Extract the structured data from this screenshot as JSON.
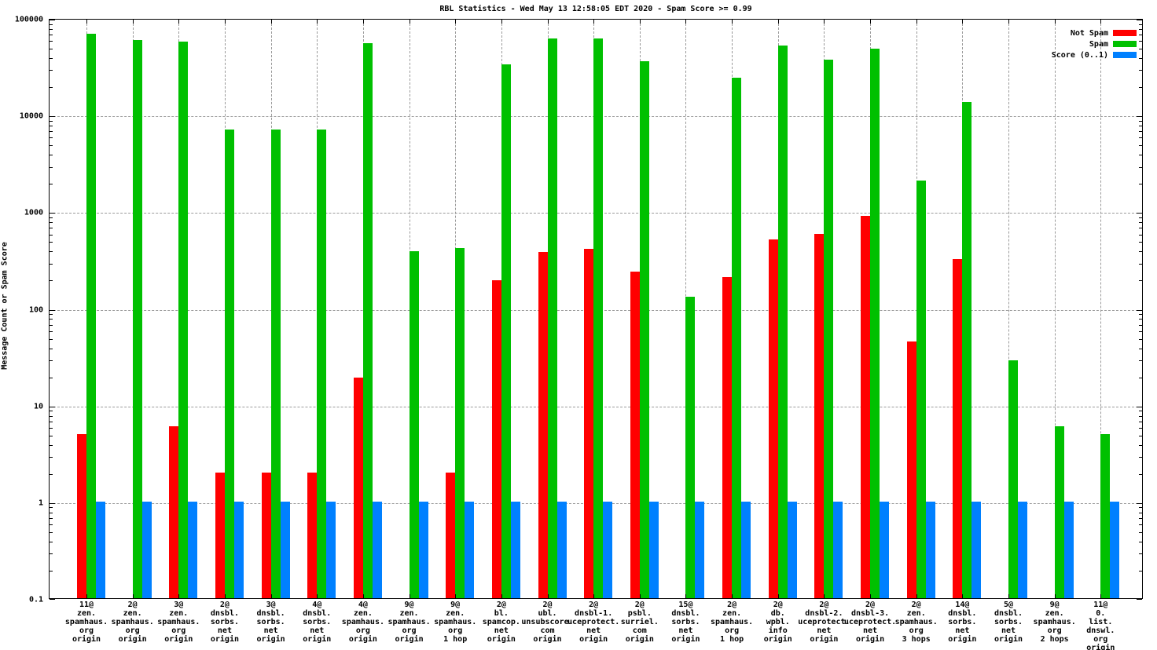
{
  "chart_data": {
    "type": "bar",
    "title": "RBL Statistics - Wed May 13 12:58:05 EDT 2020 - Spam Score >= 0.99",
    "ylabel": "Message Count or Spam Score",
    "xlabel": "",
    "y_scale": "log",
    "ylim": [
      0.1,
      100000
    ],
    "ytick_labels": [
      "100000",
      "10000",
      "1000",
      "100",
      "10",
      "1",
      "0.1"
    ],
    "grid": "dashed gray horizontal and vertical",
    "legend_position": "top-right",
    "categories": [
      [
        "11@",
        "zen.",
        "spamhaus.",
        "org",
        "origin"
      ],
      [
        "2@",
        "zen.",
        "spamhaus.",
        "org",
        "origin"
      ],
      [
        "3@",
        "zen.",
        "spamhaus.",
        "org",
        "origin"
      ],
      [
        "2@",
        "dnsbl.",
        "sorbs.",
        "net",
        "origin"
      ],
      [
        "3@",
        "dnsbl.",
        "sorbs.",
        "net",
        "origin"
      ],
      [
        "4@",
        "dnsbl.",
        "sorbs.",
        "net",
        "origin"
      ],
      [
        "4@",
        "zen.",
        "spamhaus.",
        "org",
        "origin"
      ],
      [
        "9@",
        "zen.",
        "spamhaus.",
        "org",
        "origin"
      ],
      [
        "9@",
        "zen.",
        "spamhaus.",
        "org",
        "1 hop"
      ],
      [
        "2@",
        "bl.",
        "spamcop.",
        "net",
        "origin"
      ],
      [
        "2@",
        "ubl.",
        "unsubscore.",
        "com",
        "origin"
      ],
      [
        "2@",
        "dnsbl-1.",
        "uceprotect.",
        "net",
        "origin"
      ],
      [
        "2@",
        "psbl.",
        "surriel.",
        "com",
        "origin"
      ],
      [
        "15@",
        "dnsbl.",
        "sorbs.",
        "net",
        "origin"
      ],
      [
        "2@",
        "zen.",
        "spamhaus.",
        "org",
        "1 hop"
      ],
      [
        "2@",
        "db.",
        "wpbl.",
        "info",
        "origin"
      ],
      [
        "2@",
        "dnsbl-2.",
        "uceprotect.",
        "net",
        "origin"
      ],
      [
        "2@",
        "dnsbl-3.",
        "uceprotect.",
        "net",
        "origin"
      ],
      [
        "2@",
        "zen.",
        "spamhaus.",
        "org",
        "3 hops"
      ],
      [
        "14@",
        "dnsbl.",
        "sorbs.",
        "net",
        "origin"
      ],
      [
        "5@",
        "dnsbl.",
        "sorbs.",
        "net",
        "origin"
      ],
      [
        "9@",
        "zen.",
        "spamhaus.",
        "org",
        "2 hops"
      ],
      [
        "11@",
        "0.",
        "list.",
        "dnswl.",
        "org",
        "origin"
      ]
    ],
    "series": [
      {
        "name": "Not Spam",
        "color": "#ff0000",
        "values": [
          5,
          0,
          6,
          2,
          2,
          2,
          19,
          0,
          2,
          195,
          380,
          410,
          240,
          0,
          210,
          510,
          580,
          900,
          45,
          320,
          0,
          0,
          0
        ]
      },
      {
        "name": "Spam",
        "color": "#00c000",
        "values": [
          69000,
          59000,
          57000,
          7000,
          7000,
          7000,
          55000,
          390,
          420,
          33000,
          61000,
          61000,
          36000,
          130,
          24000,
          52000,
          37000,
          48000,
          2100,
          13500,
          29,
          6,
          5
        ]
      },
      {
        "name": "Score (0..1)",
        "color": "#0080ff",
        "values": [
          1,
          1,
          1,
          1,
          1,
          1,
          1,
          1,
          1,
          1,
          1,
          1,
          1,
          1,
          1,
          1,
          1,
          1,
          1,
          1,
          1,
          1,
          1
        ]
      }
    ]
  }
}
